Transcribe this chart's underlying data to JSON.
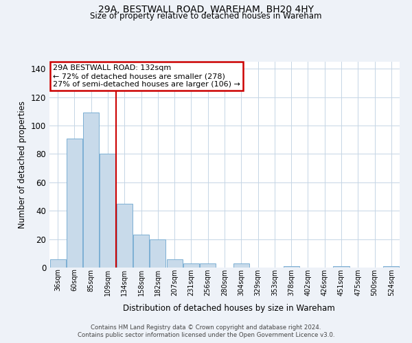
{
  "title": "29A, BESTWALL ROAD, WAREHAM, BH20 4HY",
  "subtitle": "Size of property relative to detached houses in Wareham",
  "xlabel": "Distribution of detached houses by size in Wareham",
  "ylabel": "Number of detached properties",
  "bar_labels": [
    "36sqm",
    "60sqm",
    "85sqm",
    "109sqm",
    "134sqm",
    "158sqm",
    "182sqm",
    "207sqm",
    "231sqm",
    "256sqm",
    "280sqm",
    "304sqm",
    "329sqm",
    "353sqm",
    "378sqm",
    "402sqm",
    "426sqm",
    "451sqm",
    "475sqm",
    "500sqm",
    "524sqm"
  ],
  "bar_values": [
    6,
    91,
    109,
    80,
    45,
    23,
    20,
    6,
    3,
    3,
    0,
    3,
    0,
    0,
    1,
    0,
    0,
    1,
    0,
    0,
    1
  ],
  "bar_color": "#c8daea",
  "bar_edgecolor": "#7bafd4",
  "vline_x_index": 4,
  "vline_color": "#cc0000",
  "ylim": [
    0,
    145
  ],
  "yticks": [
    0,
    20,
    40,
    60,
    80,
    100,
    120,
    140
  ],
  "annotation_title": "29A BESTWALL ROAD: 132sqm",
  "annotation_line1": "← 72% of detached houses are smaller (278)",
  "annotation_line2": "27% of semi-detached houses are larger (106) →",
  "annotation_box_color": "#cc0000",
  "footer_line1": "Contains HM Land Registry data © Crown copyright and database right 2024.",
  "footer_line2": "Contains public sector information licensed under the Open Government Licence v3.0.",
  "background_color": "#eef2f8",
  "plot_bg_color": "#ffffff",
  "grid_color": "#c5d5e5"
}
